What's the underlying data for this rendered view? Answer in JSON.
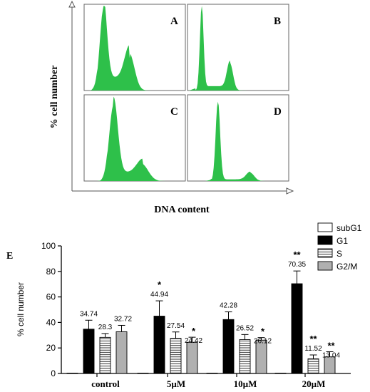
{
  "top": {
    "ylabel": "% cell number",
    "xlabel": "DNA content",
    "panels": [
      {
        "label": "A",
        "profile": "broad-g1-large-g2"
      },
      {
        "label": "B",
        "profile": "narrow-g1-medium-g2"
      },
      {
        "label": "C",
        "profile": "broad-g1-small-g2"
      },
      {
        "label": "D",
        "profile": "narrow-g1-tiny-g2"
      }
    ],
    "fill_color": "#2ec04a"
  },
  "chart_data": {
    "type": "bar",
    "panel_label": "E",
    "categories": [
      "control",
      "5µM",
      "10µM",
      "20µM"
    ],
    "ylabel": "% cell number",
    "xlabel": "",
    "ylim": [
      0,
      100
    ],
    "yticks": [
      0,
      20,
      40,
      60,
      80,
      100
    ],
    "legend_position": "top-right",
    "series": [
      {
        "name": "subG1",
        "style": "white",
        "values": [
          0.3,
          0.3,
          0.3,
          0.3
        ],
        "errors": [
          0,
          0,
          0,
          0
        ],
        "labels": [
          "",
          "",
          "",
          ""
        ],
        "stars": [
          "",
          "",
          "",
          ""
        ]
      },
      {
        "name": "G1",
        "style": "black",
        "values": [
          34.74,
          44.94,
          42.28,
          70.35
        ],
        "errors": [
          7,
          12,
          6,
          10
        ],
        "labels": [
          "34.74",
          "44.94",
          "42.28",
          "70.35"
        ],
        "stars": [
          "",
          "*",
          "",
          "**"
        ]
      },
      {
        "name": "S",
        "style": "hatched",
        "values": [
          28.3,
          27.54,
          26.52,
          11.52
        ],
        "errors": [
          3,
          5,
          4,
          3
        ],
        "labels": [
          "28.3",
          "27.54",
          "26.52",
          "11.52"
        ],
        "stars": [
          "",
          "",
          "",
          "**"
        ]
      },
      {
        "name": "G2/M",
        "style": "gray",
        "values": [
          32.72,
          24.42,
          26.12,
          13.04
        ],
        "errors": [
          5,
          4,
          2,
          4
        ],
        "labels": [
          "32.72",
          "24.42",
          "26.12",
          "13.04"
        ],
        "stars": [
          "",
          "*",
          "*",
          "**"
        ]
      }
    ],
    "colors": {
      "white": "#ffffff",
      "black": "#000000",
      "gray": "#b0b0b0",
      "hatch": "#000000"
    }
  }
}
